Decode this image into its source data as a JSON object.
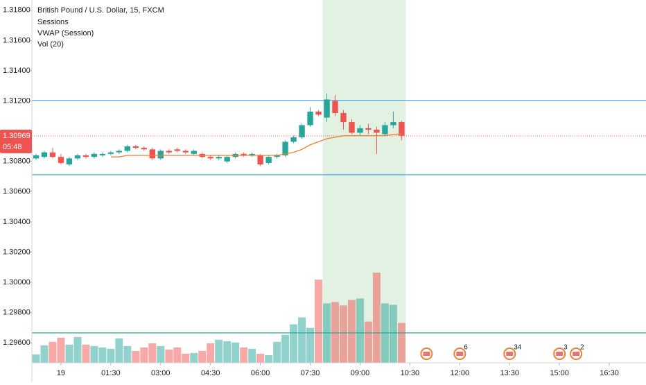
{
  "chart_data": {
    "type": "candlestick",
    "title": "British Pound / U.S. Dollar, 15, FXCM",
    "indicators": [
      "Sessions",
      "VWAP (Session)",
      "Vol (20)"
    ],
    "x": [
      -0.75,
      -0.5,
      -0.25,
      0,
      0.25,
      0.5,
      0.75,
      1,
      1.25,
      1.5,
      1.75,
      2,
      2.25,
      2.5,
      2.75,
      3,
      3.25,
      3.5,
      3.75,
      4,
      4.25,
      4.5,
      4.75,
      5,
      5.25,
      5.5,
      5.75,
      6,
      6.25,
      6.5,
      6.75,
      7,
      7.25,
      7.5,
      7.75,
      8,
      8.25,
      8.5,
      8.75,
      9,
      9.25,
      9.5,
      9.75,
      10,
      10.25
    ],
    "open": [
      1.3082,
      1.3083,
      1.3086,
      1.3083,
      1.3078,
      1.3082,
      1.3084,
      1.3083,
      1.3084,
      1.3085,
      1.3086,
      1.3087,
      1.309,
      1.3089,
      1.3088,
      1.3082,
      1.3087,
      1.3088,
      1.3087,
      1.3085,
      1.3085,
      1.3083,
      1.3082,
      1.308,
      1.3083,
      1.3085,
      1.3084,
      1.3084,
      1.3079,
      1.3083,
      1.3084,
      1.3093,
      1.3096,
      1.3104,
      1.3113,
      1.3109,
      1.312,
      1.3112,
      1.3106,
      1.3099,
      1.3102,
      1.3101,
      1.3098,
      1.3104,
      1.3106
    ],
    "high": [
      1.3085,
      1.3087,
      1.3089,
      1.3085,
      1.3083,
      1.3085,
      1.3085,
      1.3086,
      1.3086,
      1.3087,
      1.3088,
      1.3091,
      1.3091,
      1.309,
      1.3089,
      1.3088,
      1.3088,
      1.3089,
      1.3088,
      1.3088,
      1.3086,
      1.3084,
      1.3084,
      1.3084,
      1.3086,
      1.3086,
      1.3086,
      1.3085,
      1.3084,
      1.3085,
      1.3094,
      1.3097,
      1.3105,
      1.3116,
      1.3114,
      1.3125,
      1.3124,
      1.3114,
      1.3108,
      1.3104,
      1.3105,
      1.3103,
      1.3106,
      1.3113,
      1.3107
    ],
    "low": [
      1.3081,
      1.3082,
      1.3082,
      1.3078,
      1.3077,
      1.3081,
      1.3082,
      1.3082,
      1.3083,
      1.3084,
      1.3085,
      1.3086,
      1.3088,
      1.3087,
      1.3081,
      1.3081,
      1.3085,
      1.3086,
      1.3085,
      1.3084,
      1.3082,
      1.3081,
      1.3081,
      1.3079,
      1.3082,
      1.3083,
      1.3083,
      1.3077,
      1.3078,
      1.3082,
      1.3083,
      1.3092,
      1.3095,
      1.3103,
      1.311,
      1.3106,
      1.311,
      1.3101,
      1.3098,
      1.3097,
      1.3098,
      1.3085,
      1.3097,
      1.3102,
      1.3094
    ],
    "close": [
      1.3084,
      1.3086,
      1.3083,
      1.3079,
      1.3082,
      1.3084,
      1.3083,
      1.3085,
      1.3085,
      1.3086,
      1.3087,
      1.309,
      1.3089,
      1.3088,
      1.3082,
      1.3087,
      1.3086,
      1.3087,
      1.3086,
      1.3087,
      1.3083,
      1.3082,
      1.3083,
      1.3083,
      1.3085,
      1.3084,
      1.3085,
      1.3078,
      1.3083,
      1.3084,
      1.3093,
      1.3096,
      1.3104,
      1.3113,
      1.3111,
      1.3121,
      1.3112,
      1.3106,
      1.3099,
      1.3102,
      1.3101,
      1.3099,
      1.3104,
      1.3106,
      1.3097
    ],
    "vwap": [
      null,
      null,
      null,
      null,
      null,
      null,
      null,
      null,
      null,
      1.3083,
      1.3083,
      1.3084,
      1.3084,
      1.3084,
      1.3084,
      1.3084,
      1.3084,
      1.3084,
      1.3084,
      1.3084,
      1.3084,
      1.3084,
      1.3084,
      1.3084,
      1.3084,
      1.3084,
      1.3084,
      1.3084,
      1.3084,
      1.3084,
      1.3085,
      1.3086,
      1.3088,
      1.3091,
      1.3093,
      1.3095,
      1.3096,
      1.3097,
      1.3097,
      1.3097,
      1.3097,
      1.3097,
      1.3097,
      1.3098,
      1.3098
    ],
    "volume": [
      12,
      25,
      30,
      36,
      26,
      37,
      26,
      24,
      22,
      20,
      35,
      24,
      17,
      22,
      28,
      24,
      19,
      22,
      13,
      14,
      17,
      28,
      33,
      31,
      29,
      22,
      20,
      13,
      11,
      30,
      40,
      55,
      65,
      50,
      119,
      85,
      87,
      82,
      90,
      92,
      59,
      129,
      85,
      83,
      57
    ],
    "up_color": "#26a69a",
    "down_color": "#ef5350",
    "vwap_color": "#f57c2c",
    "session_color": "#e3f1e3",
    "session_x": [
      7.875,
      10.375
    ],
    "xlim": [
      -0.875,
      17.604
    ],
    "ylim": [
      1.29468,
      1.31868
    ],
    "yticks": [
      {
        "value": 1.318,
        "label": "1.31800"
      },
      {
        "value": 1.316,
        "label": "1.31600"
      },
      {
        "value": 1.314,
        "label": "1.31400"
      },
      {
        "value": 1.312,
        "label": "1.31200"
      },
      {
        "value": 1.308,
        "label": "1.30800"
      },
      {
        "value": 1.306,
        "label": "1.30600"
      },
      {
        "value": 1.304,
        "label": "1.30400"
      },
      {
        "value": 1.302,
        "label": "1.30200"
      },
      {
        "value": 1.3,
        "label": "1.30000"
      },
      {
        "value": 1.298,
        "label": "1.29800"
      },
      {
        "value": 1.296,
        "label": "1.29600"
      }
    ],
    "xticks": [
      {
        "value": 0,
        "label": "19"
      },
      {
        "value": 1.5,
        "label": "01:30"
      },
      {
        "value": 3,
        "label": "03:00"
      },
      {
        "value": 4.5,
        "label": "04:30"
      },
      {
        "value": 6,
        "label": "06:00"
      },
      {
        "value": 7.5,
        "label": "07:30"
      },
      {
        "value": 9,
        "label": "09:00"
      },
      {
        "value": 10.5,
        "label": "10:30"
      },
      {
        "value": 12,
        "label": "12:00"
      },
      {
        "value": 13.5,
        "label": "13:30"
      },
      {
        "value": 15,
        "label": "15:00"
      },
      {
        "value": 16.5,
        "label": "16:30"
      }
    ],
    "hlines": [
      {
        "value": 1.31204,
        "color": "#42a5f5"
      },
      {
        "value": 1.30712,
        "color": "#42a5f5"
      },
      {
        "value": 1.29666,
        "color": "#26a69a"
      }
    ],
    "last_price": {
      "value": 1.30969,
      "label": "1.30969",
      "countdown": "05:48",
      "color": "#ef5350"
    },
    "events": {
      "x": [
        11,
        12,
        13.5,
        15,
        15.5
      ],
      "labels": [
        null,
        "6",
        "34",
        "3",
        "2"
      ]
    }
  }
}
